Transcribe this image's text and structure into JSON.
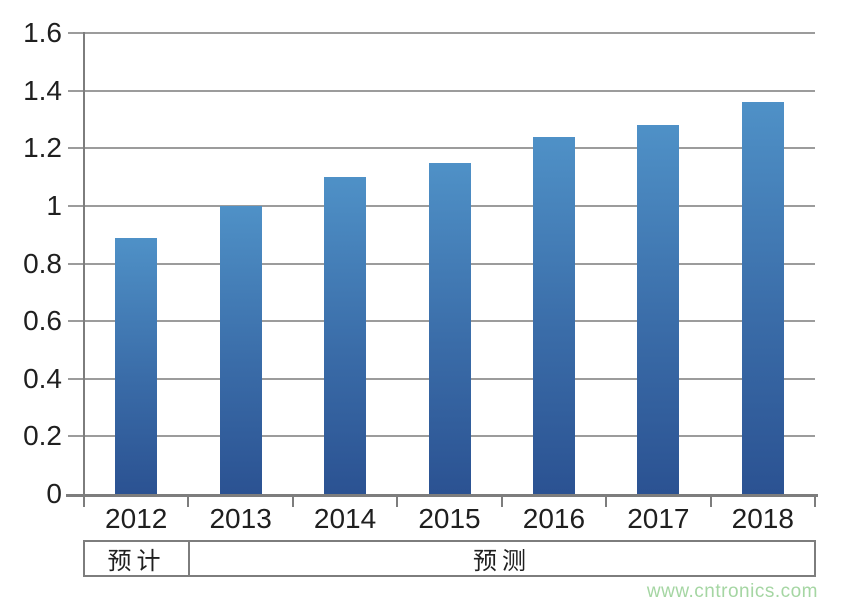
{
  "chart_data": {
    "type": "bar",
    "categories": [
      "2012",
      "2013",
      "2014",
      "2015",
      "2016",
      "2017",
      "2018"
    ],
    "values": [
      0.89,
      1.0,
      1.1,
      1.15,
      1.24,
      1.28,
      1.36
    ],
    "title": "",
    "xlabel": "",
    "ylabel": "",
    "ylim": [
      0,
      1.6
    ],
    "ytick_step": 0.2,
    "ytick_labels": [
      "0",
      "0.2",
      "0.4",
      "0.6",
      "0.8",
      "1",
      "1.2",
      "1.4",
      "1.6"
    ],
    "grid": true,
    "legend": "none",
    "bar_color_top": "#4f91c7",
    "bar_color_bottom": "#2b5292",
    "gridline_color": "#9c9c9c",
    "axis_color": "#7d7d7d"
  },
  "annotation_row": {
    "cells": [
      {
        "label": "预计",
        "covers": [
          "2012"
        ]
      },
      {
        "label": "预测",
        "covers": [
          "2013",
          "2014",
          "2015",
          "2016",
          "2017",
          "2018"
        ]
      }
    ]
  },
  "watermark": {
    "text": "www.cntronics.com",
    "color": "#a5d6a3"
  }
}
